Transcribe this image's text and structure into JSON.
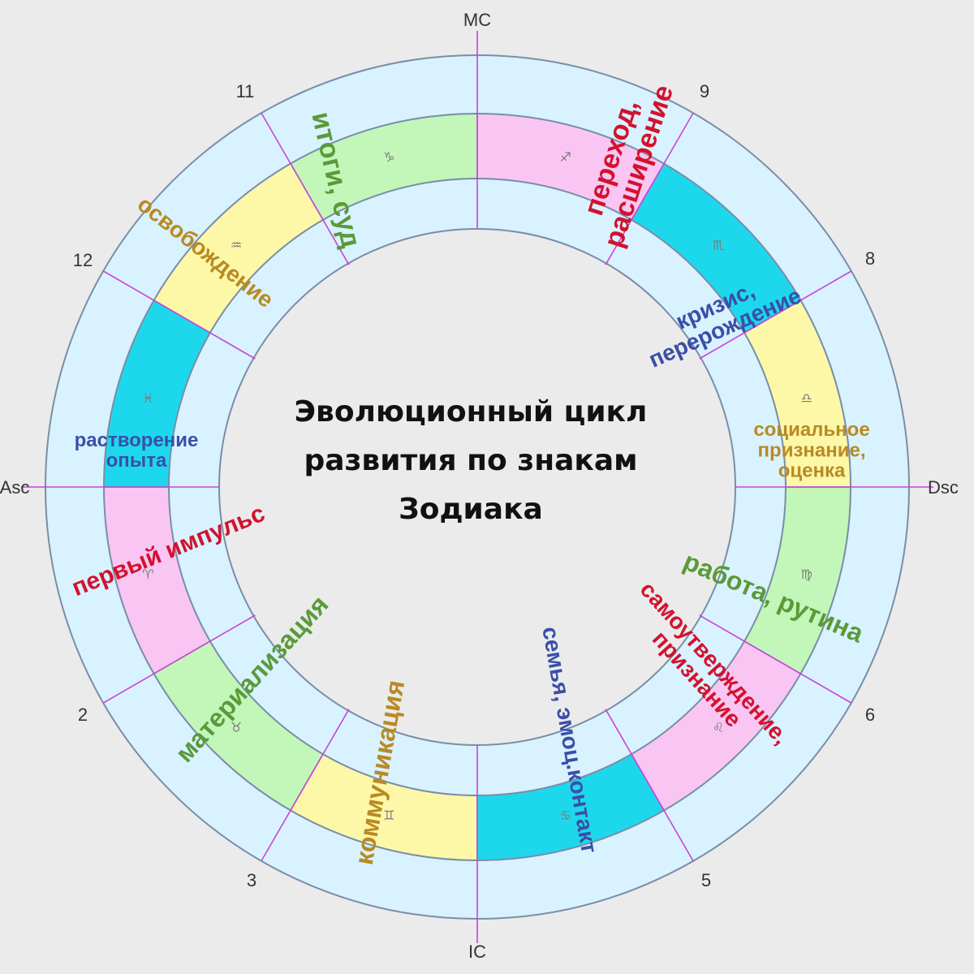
{
  "title": {
    "line1": "Эволюционный цикл",
    "line2": "развития по знакам",
    "line3": "Зодиака"
  },
  "axes": {
    "mc": "MC",
    "ic": "IC",
    "asc": "Asc",
    "dsc": "Dsc"
  },
  "houses": [
    {
      "id": "2",
      "label": "2"
    },
    {
      "id": "3",
      "label": "3"
    },
    {
      "id": "5",
      "label": "5"
    },
    {
      "id": "6",
      "label": "6"
    },
    {
      "id": "8",
      "label": "8"
    },
    {
      "id": "9",
      "label": "9"
    },
    {
      "id": "11",
      "label": "11"
    },
    {
      "id": "12",
      "label": "12"
    }
  ],
  "signs": [
    {
      "name": "aries",
      "glyph": "♈",
      "color": "#f9c6f4"
    },
    {
      "name": "taurus",
      "glyph": "♉",
      "color": "#c2f7b9"
    },
    {
      "name": "gemini",
      "glyph": "♊",
      "color": "#fdf7a8"
    },
    {
      "name": "cancer",
      "glyph": "♋",
      "color": "#1dd8ec"
    },
    {
      "name": "leo",
      "glyph": "♌",
      "color": "#f9c6f4"
    },
    {
      "name": "virgo",
      "glyph": "♍",
      "color": "#c2f7b9"
    },
    {
      "name": "libra",
      "glyph": "♎",
      "color": "#fdf7a8"
    },
    {
      "name": "scorpio",
      "glyph": "♏",
      "color": "#1dd8ec"
    },
    {
      "name": "sagittarius",
      "glyph": "♐",
      "color": "#f9c6f4"
    },
    {
      "name": "capricorn",
      "glyph": "♑",
      "color": "#c2f7b9"
    },
    {
      "name": "aquarius",
      "glyph": "♒",
      "color": "#fdf7a8"
    },
    {
      "name": "pisces",
      "glyph": "♓",
      "color": "#1dd8ec"
    }
  ],
  "phases": {
    "aries": [
      "первый импульс"
    ],
    "taurus": [
      "материализация"
    ],
    "gemini": [
      "коммуникация"
    ],
    "cancer": [
      "семья, эмоц.контакт"
    ],
    "leo": [
      "самоутверждение,",
      "признание"
    ],
    "virgo": [
      "работа, рутина"
    ],
    "libra": [
      "социальное",
      "признание,",
      "оценка"
    ],
    "scorpio": [
      "кризис,",
      "перерождение"
    ],
    "sagittarius": [
      "переход,",
      "расширение"
    ],
    "capricorn": [
      "итоги, суд"
    ],
    "aquarius": [
      "освобождение"
    ],
    "pisces": [
      "растворение",
      "опыта"
    ]
  },
  "colors": {
    "background": "#ebebeb",
    "ring_fill": "#d9f2ff",
    "ring_stroke": "#7a8ea8",
    "house_line": "#c844d8",
    "inner_fill": "#ebebeb",
    "red": "#d2122e",
    "green": "#5a9a3a",
    "ochre": "#b88a24",
    "blue": "#3a4fa8"
  }
}
